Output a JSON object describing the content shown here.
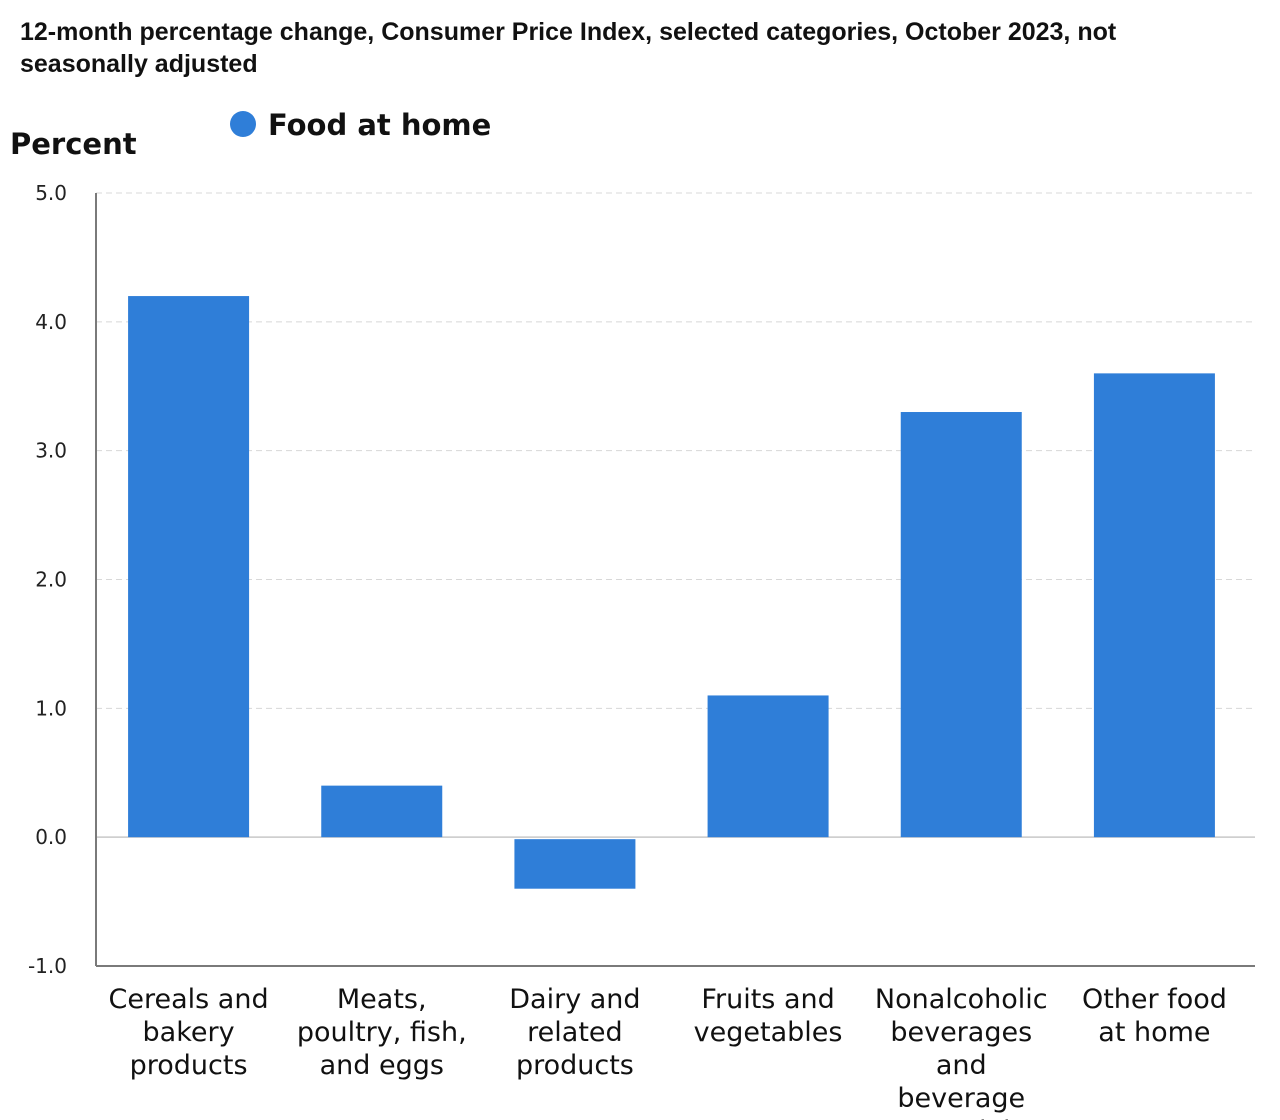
{
  "chart_data": {
    "type": "bar",
    "title": "12-month percentage change, Consumer Price Index, selected categories, October 2023, not seasonally adjusted",
    "ylabel": "Percent",
    "xlabel": "",
    "ylim": [
      -1.0,
      5.0
    ],
    "yticks": [
      -1.0,
      0.0,
      1.0,
      2.0,
      3.0,
      4.0,
      5.0
    ],
    "ytick_labels": [
      "-1.0",
      "0.0",
      "1.0",
      "2.0",
      "3.0",
      "4.0",
      "5.0"
    ],
    "grid": true,
    "legend_position": "top-left",
    "categories": [
      [
        "Cereals and",
        "bakery",
        "products"
      ],
      [
        "Meats,",
        "poultry, fish,",
        "and eggs"
      ],
      [
        "Dairy and",
        "related",
        "products"
      ],
      [
        "Fruits and",
        "vegetables"
      ],
      [
        "Nonalcoholic",
        "beverages",
        "and",
        "beverage",
        "materials"
      ],
      [
        "Other food",
        "at home"
      ]
    ],
    "series": [
      {
        "name": "Food at home",
        "color": "#2f7ed8",
        "values": [
          4.2,
          0.4,
          -0.4,
          1.1,
          3.3,
          3.6
        ]
      }
    ]
  }
}
